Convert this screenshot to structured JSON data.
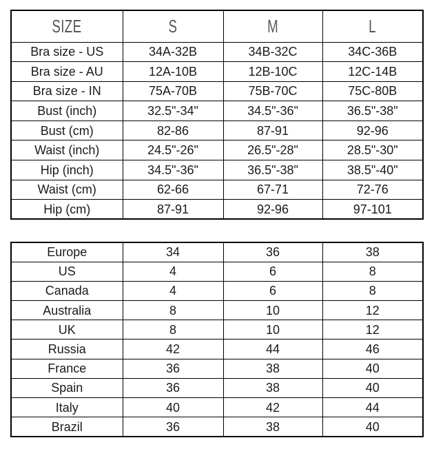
{
  "colors": {
    "background": "#ffffff",
    "border": "#000000",
    "cell_text": "#1b1b1b",
    "header_text": "#56565a"
  },
  "chart_data": [
    {
      "type": "table",
      "name": "size-measurements",
      "header": {
        "label": "SIZE",
        "sizes": [
          "S",
          "M",
          "L"
        ]
      },
      "rows": [
        {
          "label": "Bra size - US",
          "values": [
            "34A-32B",
            "34B-32C",
            "34C-36B"
          ]
        },
        {
          "label": "Bra size - AU",
          "values": [
            "12A-10B",
            "12B-10C",
            "12C-14B"
          ]
        },
        {
          "label": "Bra size - IN",
          "values": [
            "75A-70B",
            "75B-70C",
            "75C-80B"
          ]
        },
        {
          "label": "Bust (inch)",
          "values": [
            "32.5\"-34\"",
            "34.5\"-36\"",
            "36.5\"-38\""
          ]
        },
        {
          "label": "Bust (cm)",
          "values": [
            "82-86",
            "87-91",
            "92-96"
          ]
        },
        {
          "label": "Waist (inch)",
          "values": [
            "24.5\"-26\"",
            "26.5\"-28\"",
            "28.5\"-30\""
          ]
        },
        {
          "label": "Hip (inch)",
          "values": [
            "34.5\"-36\"",
            "36.5\"-38\"",
            "38.5\"-40\""
          ]
        },
        {
          "label": "Waist (cm)",
          "values": [
            "62-66",
            "67-71",
            "72-76"
          ]
        },
        {
          "label": "Hip (cm)",
          "values": [
            "87-91",
            "92-96",
            "97-101"
          ]
        }
      ]
    },
    {
      "type": "table",
      "name": "international-size-conversion",
      "rows": [
        {
          "label": "Europe",
          "values": [
            "34",
            "36",
            "38"
          ]
        },
        {
          "label": "US",
          "values": [
            "4",
            "6",
            "8"
          ]
        },
        {
          "label": "Canada",
          "values": [
            "4",
            "6",
            "8"
          ]
        },
        {
          "label": "Australia",
          "values": [
            "8",
            "10",
            "12"
          ]
        },
        {
          "label": "UK",
          "values": [
            "8",
            "10",
            "12"
          ]
        },
        {
          "label": "Russia",
          "values": [
            "42",
            "44",
            "46"
          ]
        },
        {
          "label": "France",
          "values": [
            "36",
            "38",
            "40"
          ]
        },
        {
          "label": "Spain",
          "values": [
            "36",
            "38",
            "40"
          ]
        },
        {
          "label": "Italy",
          "values": [
            "40",
            "42",
            "44"
          ]
        },
        {
          "label": "Brazil",
          "values": [
            "36",
            "38",
            "40"
          ]
        }
      ]
    }
  ]
}
